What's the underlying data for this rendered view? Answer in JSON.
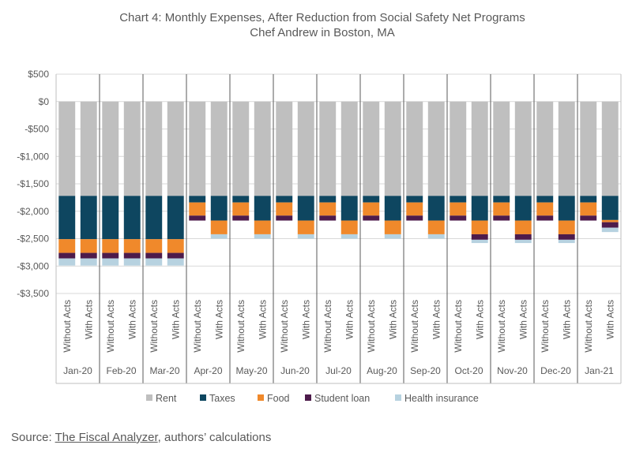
{
  "chart_data": {
    "type": "bar",
    "stacked": true,
    "title": "Chart 4: Monthly Expenses, After Reduction from Social Safety Net Programs",
    "subtitle": "Chef Andrew in Boston, MA",
    "xlabel": "",
    "ylabel": "",
    "ylim": [
      -3500,
      500
    ],
    "y_ticks": [
      500,
      0,
      -500,
      -1000,
      -1500,
      -2000,
      -2500,
      -3000,
      -3500
    ],
    "y_tick_labels": [
      "$500",
      "$0",
      "-$500",
      "-$1,000",
      "-$1,500",
      "-$2,000",
      "-$2,500",
      "-$3,000",
      "-$3,500"
    ],
    "grid": true,
    "legend_position": "bottom",
    "months": [
      "Jan-20",
      "Feb-20",
      "Mar-20",
      "Apr-20",
      "May-20",
      "Jun-20",
      "Jul-20",
      "Aug-20",
      "Sep-20",
      "Oct-20",
      "Nov-20",
      "Dec-20",
      "Jan-21"
    ],
    "scenarios": [
      "Without Acts",
      "With Acts"
    ],
    "categories": [
      "Jan-20 Without Acts",
      "Jan-20 With Acts",
      "Feb-20 Without Acts",
      "Feb-20 With Acts",
      "Mar-20 Without Acts",
      "Mar-20 With Acts",
      "Apr-20 Without Acts",
      "Apr-20 With Acts",
      "May-20 Without Acts",
      "May-20 With Acts",
      "Jun-20 Without Acts",
      "Jun-20 With Acts",
      "Jul-20 Without Acts",
      "Jul-20 With Acts",
      "Aug-20 Without Acts",
      "Aug-20 With Acts",
      "Sep-20 Without Acts",
      "Sep-20 With Acts",
      "Oct-20 Without Acts",
      "Oct-20 With Acts",
      "Nov-20 Without Acts",
      "Nov-20 With Acts",
      "Dec-20 Without Acts",
      "Dec-20 With Acts",
      "Jan-21 Without Acts",
      "Jan-21 With Acts"
    ],
    "series": [
      {
        "name": "Rent",
        "color": "#bfbfbf",
        "values": [
          -1720,
          -1720,
          -1720,
          -1720,
          -1720,
          -1720,
          -1720,
          -1720,
          -1720,
          -1720,
          -1720,
          -1720,
          -1720,
          -1720,
          -1720,
          -1720,
          -1720,
          -1720,
          -1720,
          -1720,
          -1720,
          -1720,
          -1720,
          -1720,
          -1720,
          -1720
        ]
      },
      {
        "name": "Taxes",
        "color": "#0e4660",
        "values": [
          -790,
          -790,
          -790,
          -790,
          -790,
          -790,
          -120,
          -450,
          -120,
          -450,
          -120,
          -450,
          -120,
          -450,
          -120,
          -450,
          -120,
          -450,
          -120,
          -450,
          -120,
          -450,
          -120,
          -450,
          -120,
          -440
        ]
      },
      {
        "name": "Food",
        "color": "#f0892b",
        "values": [
          -250,
          -250,
          -250,
          -250,
          -250,
          -250,
          -240,
          -250,
          -240,
          -250,
          -240,
          -250,
          -240,
          -250,
          -240,
          -250,
          -240,
          -250,
          -240,
          -250,
          -240,
          -250,
          -240,
          -250,
          -240,
          -40
        ]
      },
      {
        "name": "Student loan",
        "color": "#4d1b4b",
        "values": [
          -100,
          -100,
          -100,
          -100,
          -100,
          -100,
          -90,
          0,
          -90,
          0,
          -90,
          0,
          -90,
          0,
          -90,
          0,
          -90,
          0,
          -90,
          -100,
          -90,
          -100,
          -90,
          -100,
          -90,
          -100
        ]
      },
      {
        "name": "Health insurance",
        "color": "#b7d2e0",
        "values": [
          -130,
          -130,
          -130,
          -130,
          -130,
          -130,
          0,
          -80,
          0,
          -80,
          0,
          -80,
          0,
          -80,
          0,
          -80,
          0,
          -80,
          0,
          -60,
          0,
          -60,
          0,
          -60,
          0,
          -80
        ]
      }
    ]
  },
  "source": {
    "prefix": "Source: ",
    "link": "The Fiscal Analyzer",
    "suffix": ", authors’ calculations"
  }
}
